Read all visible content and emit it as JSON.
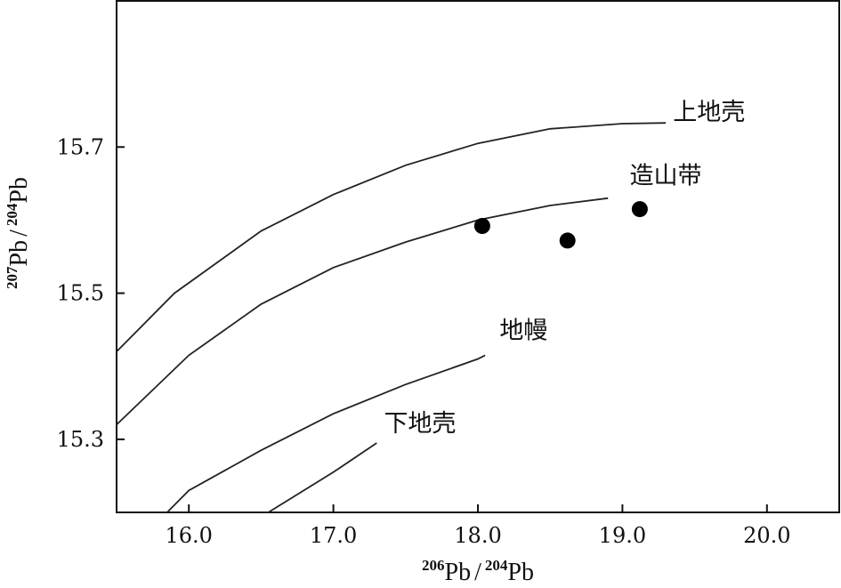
{
  "chart_data": {
    "type": "line",
    "xlim": [
      15.5,
      20.5
    ],
    "ylim": [
      15.2,
      15.9
    ],
    "x_ticks": [
      {
        "value": 16.0,
        "label": "16.0"
      },
      {
        "value": 17.0,
        "label": "17.0"
      },
      {
        "value": 18.0,
        "label": "18.0"
      },
      {
        "value": 19.0,
        "label": "19.0"
      },
      {
        "value": 20.0,
        "label": "20.0"
      }
    ],
    "y_ticks": [
      {
        "value": 15.3,
        "label": "15.3"
      },
      {
        "value": 15.5,
        "label": "15.5"
      },
      {
        "value": 15.7,
        "label": "15.7"
      }
    ],
    "xlabel": {
      "sup1": "206",
      "base1": "Pb",
      "sep": "/",
      "sup2": "204",
      "base2": "Pb"
    },
    "ylabel": {
      "sup1": "207",
      "base1": "Pb",
      "sep": "/",
      "sup2": "204",
      "base2": "Pb"
    },
    "grid": false,
    "curves": [
      {
        "name": "上地壳",
        "label_at": {
          "x": 19.35,
          "y": 15.737
        },
        "points": [
          [
            15.5,
            15.42
          ],
          [
            15.9,
            15.5
          ],
          [
            16.5,
            15.585
          ],
          [
            17.0,
            15.635
          ],
          [
            17.5,
            15.675
          ],
          [
            18.0,
            15.705
          ],
          [
            18.5,
            15.725
          ],
          [
            19.0,
            15.732
          ],
          [
            19.3,
            15.733
          ]
        ]
      },
      {
        "name": "造山带",
        "label_at": {
          "x": 19.05,
          "y": 15.65
        },
        "points": [
          [
            15.5,
            15.32
          ],
          [
            16.0,
            15.415
          ],
          [
            16.5,
            15.485
          ],
          [
            17.0,
            15.535
          ],
          [
            17.5,
            15.57
          ],
          [
            18.0,
            15.6
          ],
          [
            18.5,
            15.62
          ],
          [
            18.9,
            15.63
          ]
        ]
      },
      {
        "name": "地幔",
        "label_at": {
          "x": 18.15,
          "y": 15.438
        },
        "points": [
          [
            15.85,
            15.2
          ],
          [
            16.0,
            15.23
          ],
          [
            16.5,
            15.285
          ],
          [
            17.0,
            15.335
          ],
          [
            17.5,
            15.375
          ],
          [
            18.0,
            15.41
          ],
          [
            18.05,
            15.415
          ]
        ]
      },
      {
        "name": "下地壳",
        "label_at": {
          "x": 17.35,
          "y": 15.311
        },
        "points": [
          [
            16.55,
            15.2
          ],
          [
            17.0,
            15.255
          ],
          [
            17.3,
            15.295
          ]
        ]
      }
    ],
    "scatter": [
      {
        "x": 18.03,
        "y": 15.592
      },
      {
        "x": 18.62,
        "y": 15.572
      },
      {
        "x": 19.12,
        "y": 15.615
      }
    ]
  }
}
